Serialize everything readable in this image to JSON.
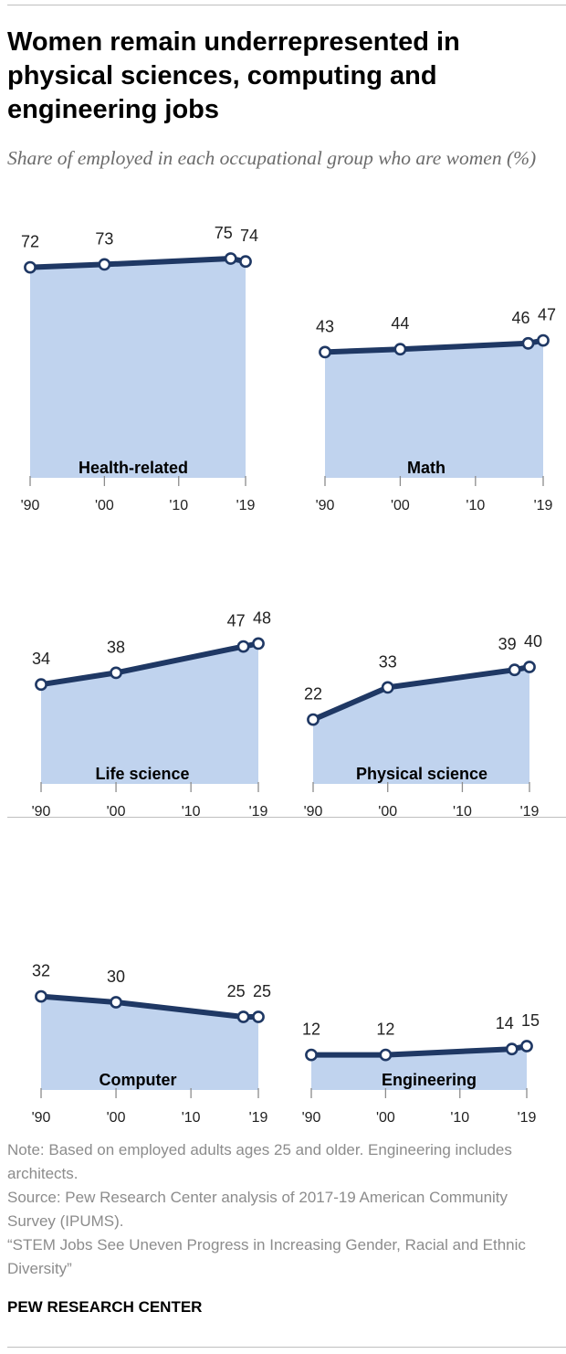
{
  "title": "Women remain underrepresented in physical sciences, computing and engineering jobs",
  "subtitle": "Share of employed in each occupational group who are women (%)",
  "colors": {
    "line": "#1f3864",
    "area": "#c0d3ee",
    "axis": "#8c8c8c"
  },
  "chart_data": [
    {
      "type": "area",
      "title": "Health-related",
      "x": [
        "1990",
        "2000",
        "2017",
        "2019"
      ],
      "values": [
        72,
        73,
        75,
        74
      ],
      "xtick_labels": [
        "'90",
        "'00",
        "'10",
        "'19"
      ]
    },
    {
      "type": "area",
      "title": "Math",
      "x": [
        "1990",
        "2000",
        "2017",
        "2019"
      ],
      "values": [
        43,
        44,
        46,
        47
      ],
      "xtick_labels": [
        "'90",
        "'00",
        "'10",
        "'19"
      ]
    },
    {
      "type": "area",
      "title": "Life science",
      "x": [
        "1990",
        "2000",
        "2017",
        "2019"
      ],
      "values": [
        34,
        38,
        47,
        48
      ],
      "xtick_labels": [
        "'90",
        "'00",
        "'10",
        "'19"
      ]
    },
    {
      "type": "area",
      "title": "Physical science",
      "x": [
        "1990",
        "2000",
        "2017",
        "2019"
      ],
      "values": [
        22,
        33,
        39,
        40
      ],
      "xtick_labels": [
        "'90",
        "'00",
        "'10",
        "'19"
      ]
    },
    {
      "type": "area",
      "title": "Computer",
      "x": [
        "1990",
        "2000",
        "2017",
        "2019"
      ],
      "values": [
        32,
        30,
        25,
        25
      ],
      "xtick_labels": [
        "'90",
        "'00",
        "'10",
        "'19"
      ]
    },
    {
      "type": "area",
      "title": "Engineering",
      "x": [
        "1990",
        "2000",
        "2017",
        "2019"
      ],
      "values": [
        12,
        12,
        14,
        15
      ],
      "xtick_labels": [
        "'90",
        "'00",
        "'10",
        "'19"
      ]
    }
  ],
  "notes": {
    "note": "Note: Based on employed adults ages 25 and older. Engineering includes architects.",
    "source": "Source: Pew Research Center analysis of 2017-19 American Community Survey (IPUMS).",
    "report": "“STEM Jobs See Uneven Progress in Increasing Gender, Racial and Ethnic Diversity”"
  },
  "brand": "PEW RESEARCH CENTER"
}
